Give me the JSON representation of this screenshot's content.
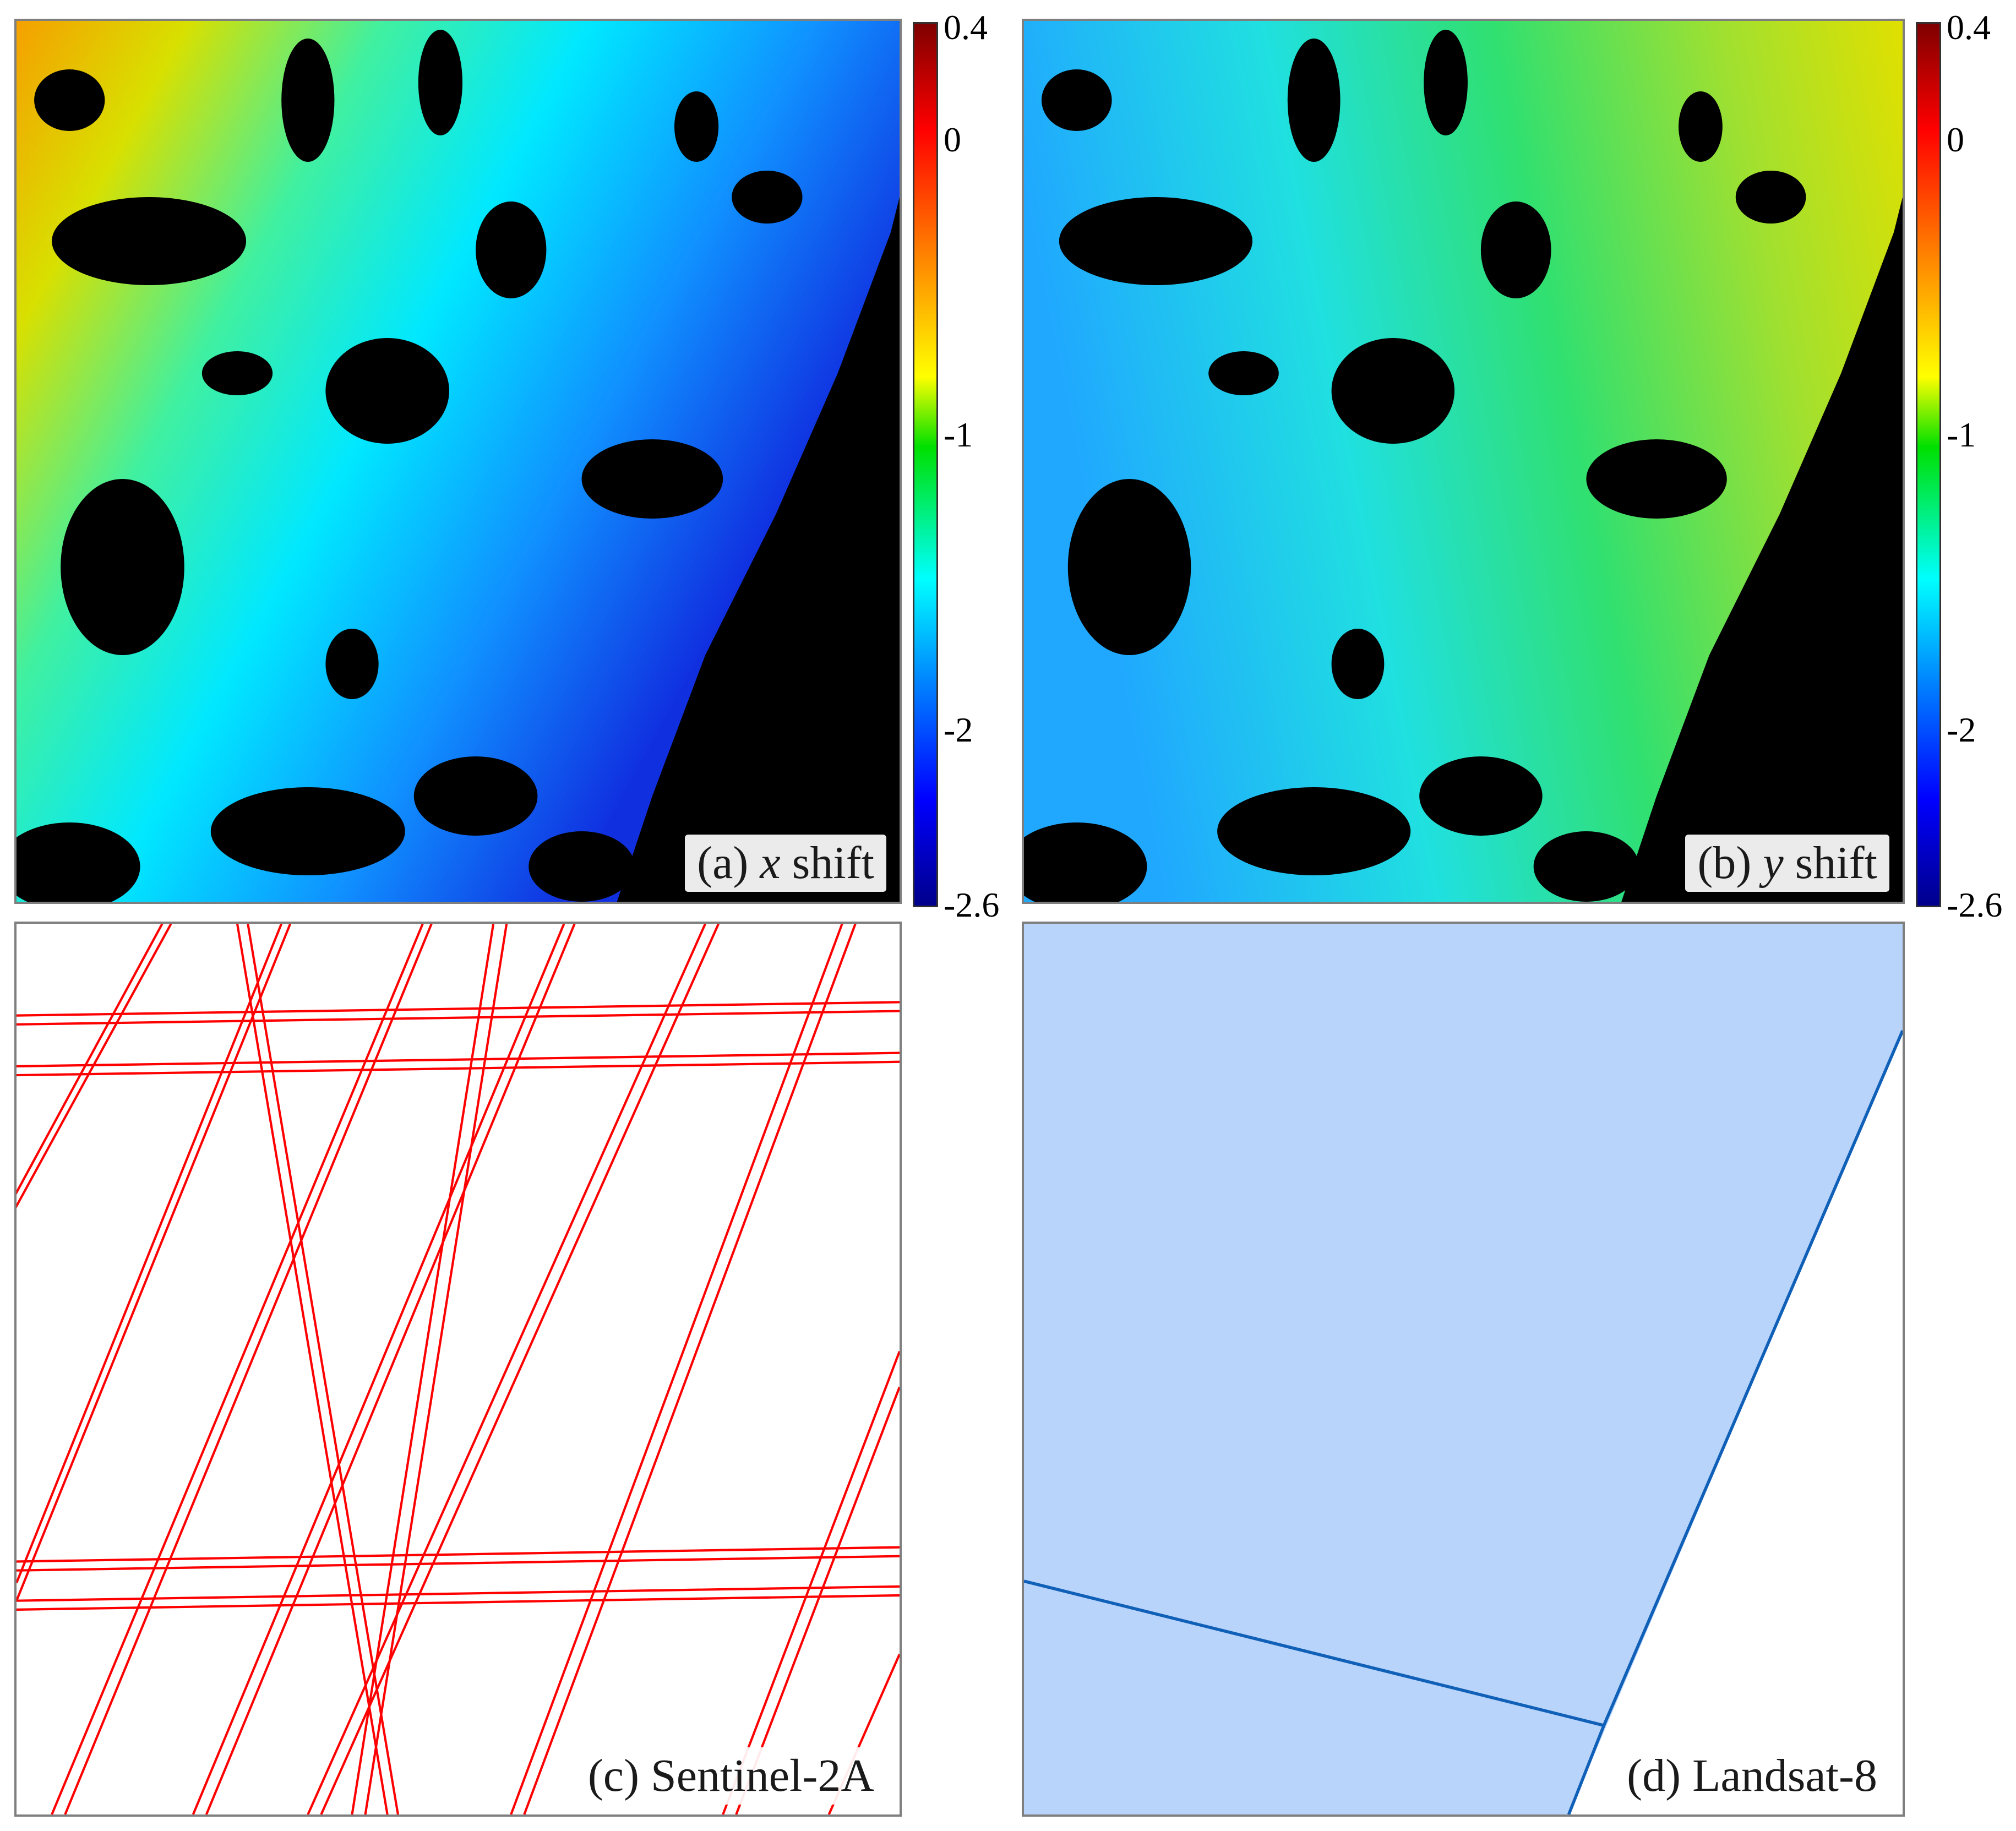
{
  "panels": {
    "a": {
      "label_prefix": "(a)",
      "label_var": "x",
      "label_suffix": "shift"
    },
    "b": {
      "label_prefix": "(b)",
      "label_var": "y",
      "label_suffix": "shift"
    },
    "c": {
      "label": "(c) Sentinel-2A"
    },
    "d": {
      "label": "(d) Landsat-8"
    }
  },
  "colorbar": {
    "ticks": [
      "0.4",
      "0",
      "-1",
      "-2",
      "-2.6"
    ],
    "tick_values": [
      0.4,
      0,
      -1,
      -2,
      -2.6
    ],
    "range": [
      -2.6,
      0.4
    ],
    "colormap": "jet"
  },
  "colors": {
    "nodata": "#000000",
    "sentinel_lines": "#ff0000",
    "landsat_fill": "#b8d4fb",
    "landsat_line": "#1060b8",
    "frame": "#7f7f7f"
  }
}
